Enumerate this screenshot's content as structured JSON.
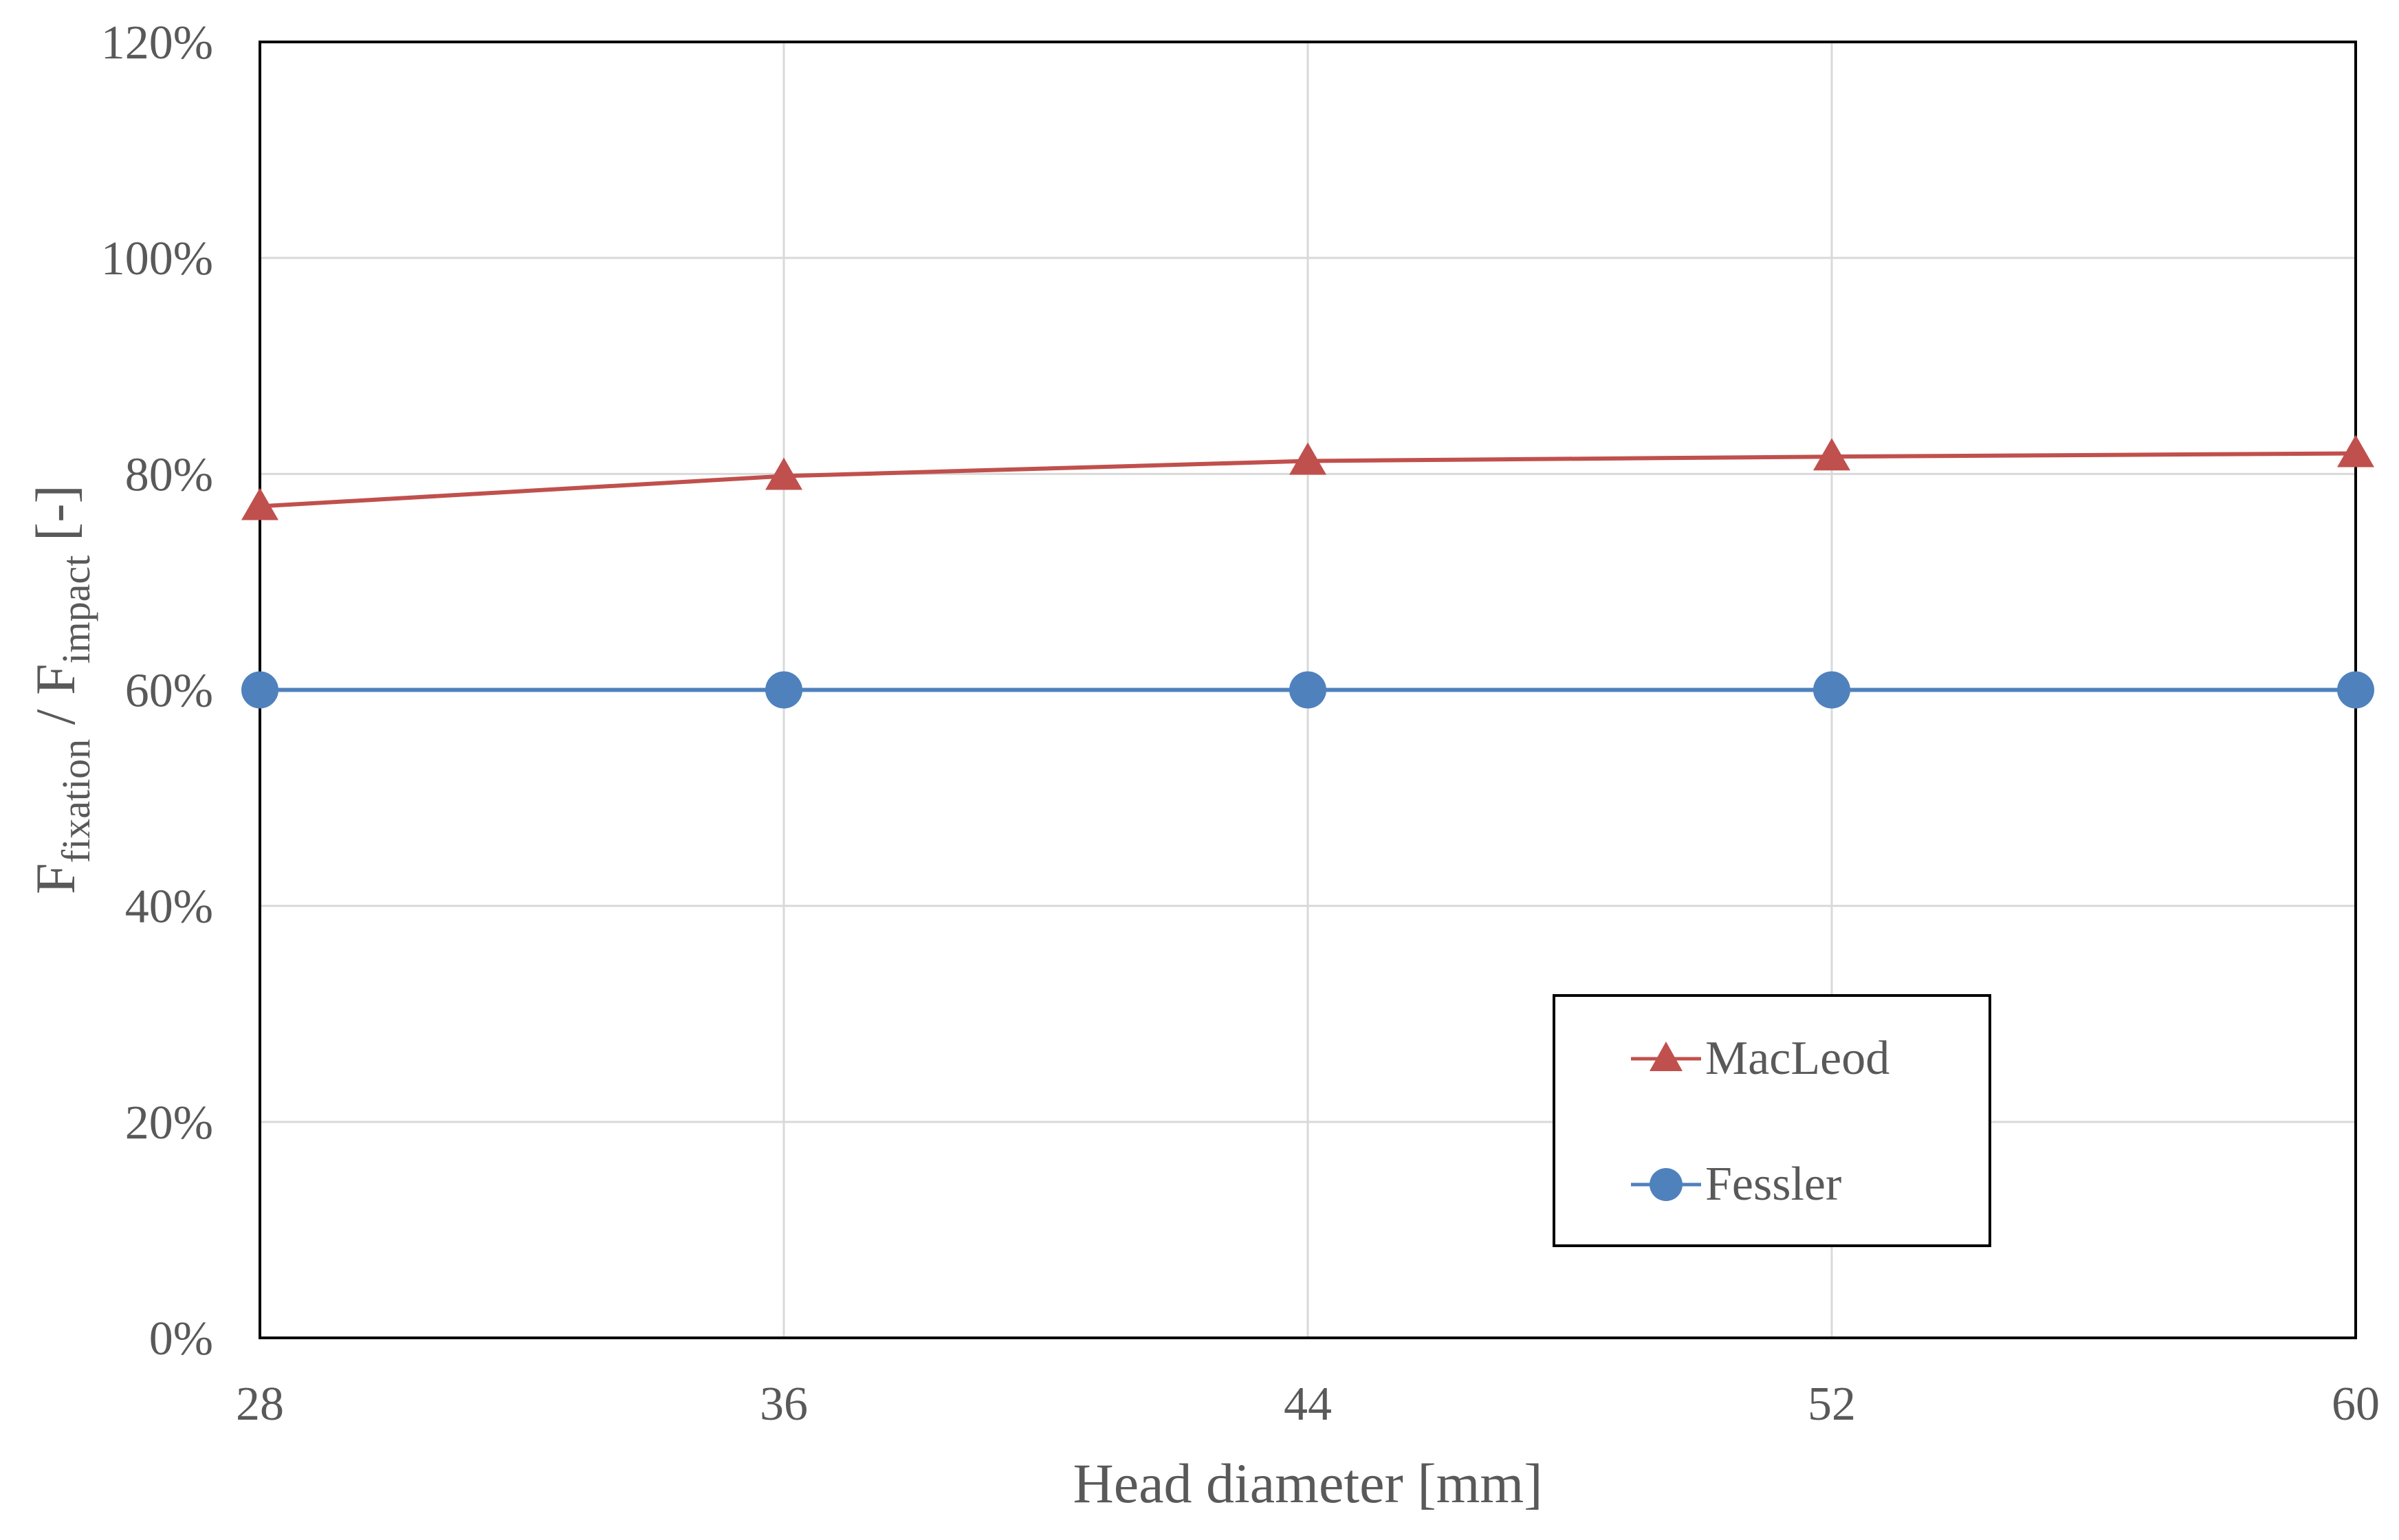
{
  "chart_data": {
    "type": "line",
    "title": "",
    "xlabel": "Head diameter [mm]",
    "ylabel": {
      "main_f1": "F",
      "sub_f1": "fixation",
      "separator": " / F",
      "sub_f2": "impact",
      "unit": " [-]"
    },
    "x": [
      28,
      36,
      44,
      52,
      60
    ],
    "x_tick_labels": [
      "28",
      "36",
      "44",
      "52",
      "60"
    ],
    "xlim": [
      28,
      60
    ],
    "ylim": [
      0,
      1.2
    ],
    "y_ticks": [
      0,
      0.2,
      0.4,
      0.6,
      0.8,
      1.0,
      1.2
    ],
    "y_tick_labels": [
      "0%",
      "20%",
      "40%",
      "60%",
      "80%",
      "100%",
      "120%"
    ],
    "grid": true,
    "legend_position": "lower-right",
    "series": [
      {
        "name": "MacLeod",
        "marker": "triangle",
        "color": "#C0504D",
        "values": [
          0.77,
          0.798,
          0.812,
          0.816,
          0.819
        ]
      },
      {
        "name": "Fessler",
        "marker": "circle",
        "color": "#4F81BD",
        "values": [
          0.6,
          0.6,
          0.6,
          0.6,
          0.6
        ]
      }
    ]
  }
}
